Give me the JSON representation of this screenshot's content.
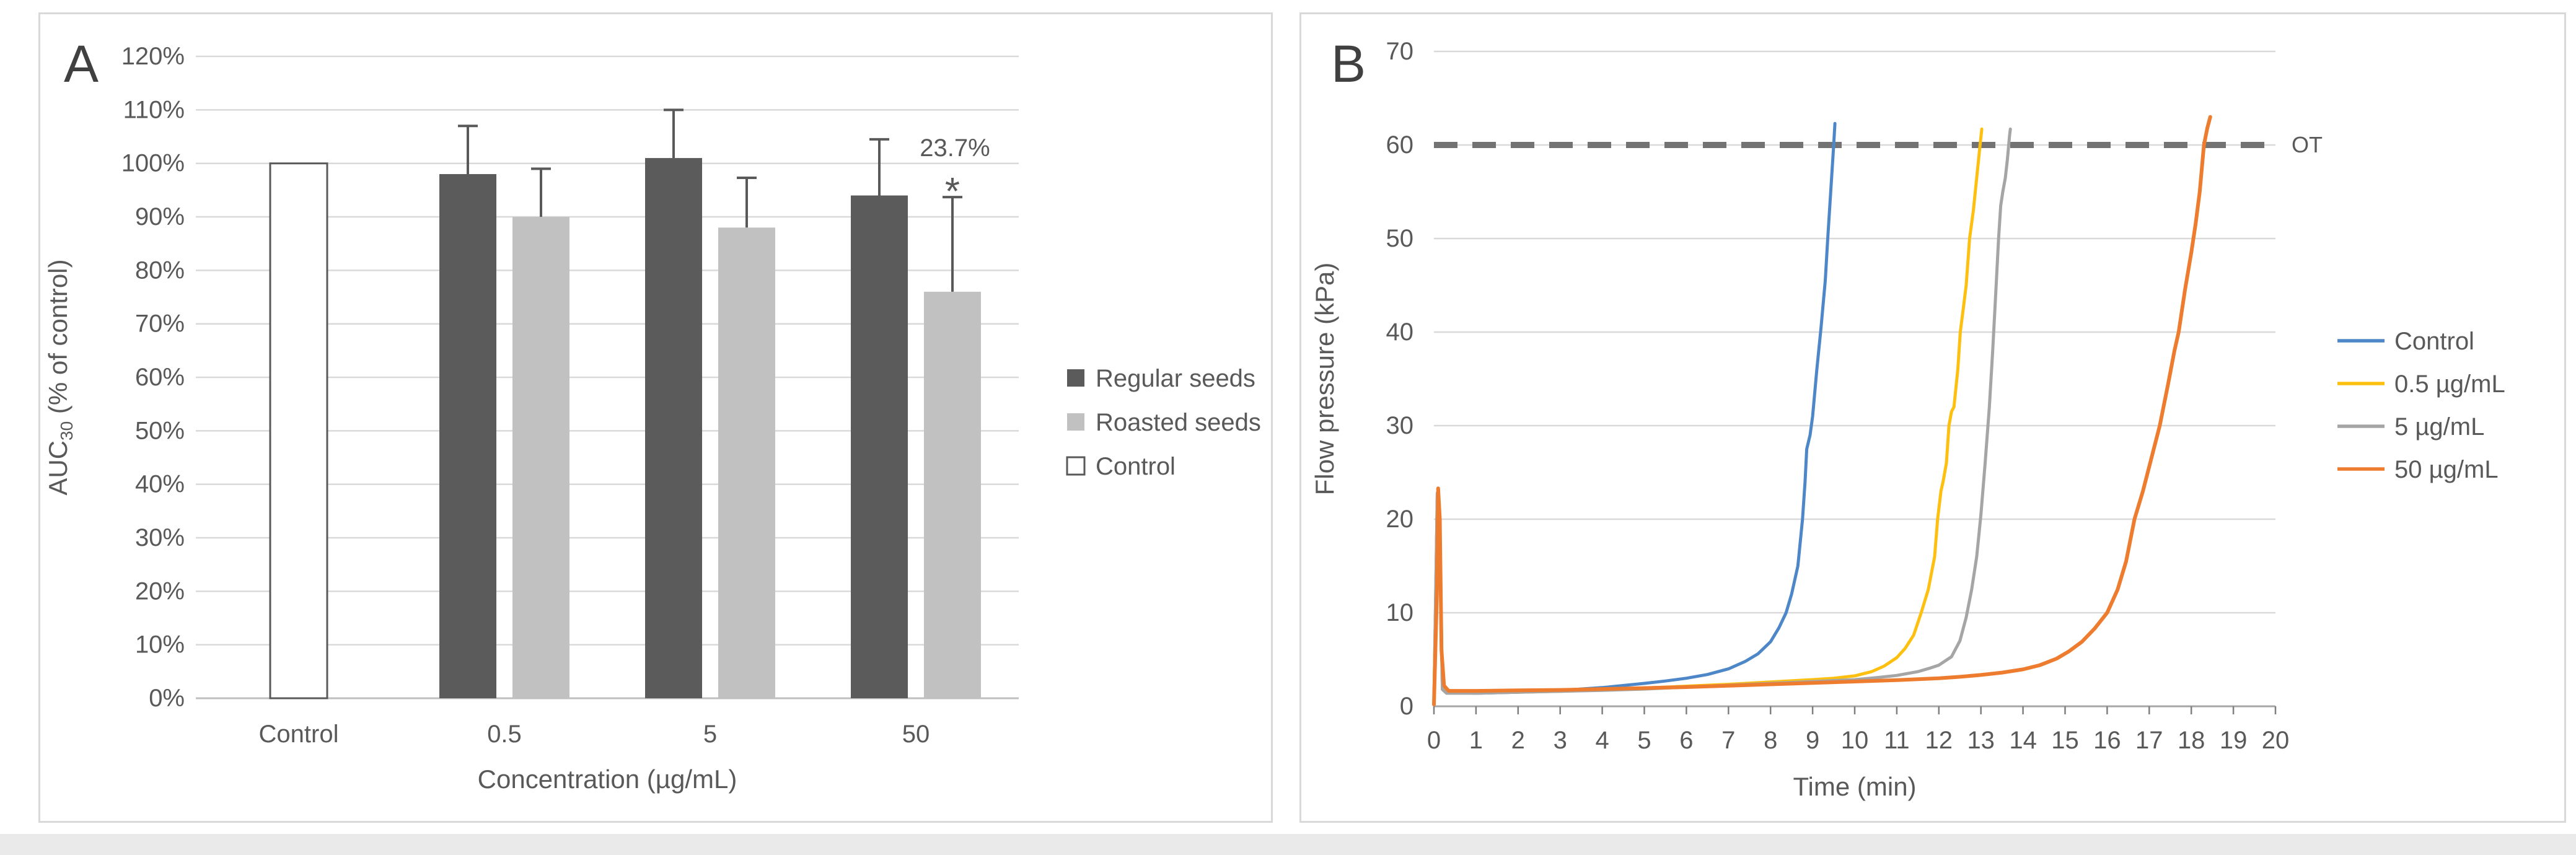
{
  "panel_a": {
    "label": "A"
  },
  "panel_b": {
    "label": "B"
  },
  "chart_data": [
    {
      "id": "A",
      "type": "bar",
      "title": "",
      "xlabel": "Concentration (µg/mL)",
      "ylabel": "AUC30 (% of control)",
      "ylabel_rich": {
        "pre": "AUC",
        "sub": "30",
        "post": " (% of control)"
      },
      "categories": [
        "Control",
        "0.5",
        "5",
        "50"
      ],
      "ylim": [
        0,
        120
      ],
      "ytick_step": 10,
      "yticks": [
        "0%",
        "10%",
        "20%",
        "30%",
        "40%",
        "50%",
        "60%",
        "70%",
        "80%",
        "90%",
        "100%",
        "110%",
        "120%"
      ],
      "grid": true,
      "legend_position": "right",
      "series": [
        {
          "name": "Regular seeds",
          "color": "#5b5b5b",
          "style": "filled",
          "values": [
            null,
            98,
            101,
            94
          ],
          "errors_plus": [
            null,
            9,
            9,
            10.5
          ]
        },
        {
          "name": "Roasted seeds",
          "color": "#c1c1c1",
          "style": "filled",
          "values": [
            null,
            90,
            88,
            76
          ],
          "errors_plus": [
            null,
            9,
            9.3,
            17.7
          ]
        },
        {
          "name": "Control",
          "color": "#ffffff",
          "outline": "#595959",
          "style": "outlined",
          "values": [
            100,
            null,
            null,
            null
          ],
          "errors_plus": [
            null,
            null,
            null,
            null
          ]
        }
      ],
      "annotations": [
        {
          "text": "23.7%",
          "category": "50",
          "series": "Roasted seeds",
          "role": "value-label"
        },
        {
          "text": "*",
          "category": "50",
          "series": "Roasted seeds",
          "role": "significance-star"
        }
      ]
    },
    {
      "id": "B",
      "type": "line",
      "title": "",
      "xlabel": "Time (min)",
      "ylabel": "Flow pressure (kPa)",
      "xlim": [
        0,
        20
      ],
      "ylim": [
        0,
        70
      ],
      "xtick_step": 1,
      "ytick_step": 10,
      "xticks": [
        "0",
        "1",
        "2",
        "3",
        "4",
        "5",
        "6",
        "7",
        "8",
        "9",
        "10",
        "11",
        "12",
        "13",
        "14",
        "15",
        "16",
        "17",
        "18",
        "19",
        "20"
      ],
      "yticks": [
        "0",
        "10",
        "20",
        "30",
        "40",
        "50",
        "60",
        "70"
      ],
      "grid": true,
      "legend_position": "right",
      "threshold": {
        "value": 60,
        "label": "OT",
        "color": "#737373",
        "style": "dashed"
      },
      "series": [
        {
          "name": "Control",
          "color": "#4e87c7",
          "width": 5,
          "points": [
            [
              0,
              0.3
            ],
            [
              0.08,
              22.2
            ],
            [
              0.14,
              18
            ],
            [
              0.2,
              2.2
            ],
            [
              0.3,
              1.5
            ],
            [
              1,
              1.4
            ],
            [
              2,
              1.5
            ],
            [
              3,
              1.7
            ],
            [
              4,
              2.0
            ],
            [
              5,
              2.45
            ],
            [
              5.5,
              2.7
            ],
            [
              6,
              3.0
            ],
            [
              6.5,
              3.4
            ],
            [
              7,
              4.0
            ],
            [
              7.4,
              4.8
            ],
            [
              7.7,
              5.6
            ],
            [
              8.0,
              6.9
            ],
            [
              8.2,
              8.4
            ],
            [
              8.37,
              10
            ],
            [
              8.5,
              12
            ],
            [
              8.65,
              15
            ],
            [
              8.76,
              20
            ],
            [
              8.82,
              24
            ],
            [
              8.86,
              27.5
            ],
            [
              8.94,
              29
            ],
            [
              9.0,
              31
            ],
            [
              9.1,
              36
            ],
            [
              9.2,
              40.5
            ],
            [
              9.3,
              45.5
            ],
            [
              9.36,
              50
            ],
            [
              9.43,
              55
            ],
            [
              9.5,
              60
            ],
            [
              9.53,
              62.3
            ]
          ]
        },
        {
          "name": "0.5 µg/mL",
          "color": "#fdc011",
          "width": 5,
          "points": [
            [
              0,
              0.3
            ],
            [
              0.08,
              22.5
            ],
            [
              0.14,
              17
            ],
            [
              0.2,
              1.9
            ],
            [
              0.3,
              1.5
            ],
            [
              1,
              1.45
            ],
            [
              2,
              1.5
            ],
            [
              3,
              1.6
            ],
            [
              4,
              1.75
            ],
            [
              5,
              1.95
            ],
            [
              6,
              2.15
            ],
            [
              7,
              2.35
            ],
            [
              8,
              2.6
            ],
            [
              9,
              2.85
            ],
            [
              9.5,
              3.0
            ],
            [
              10,
              3.25
            ],
            [
              10.4,
              3.7
            ],
            [
              10.7,
              4.3
            ],
            [
              11.0,
              5.2
            ],
            [
              11.2,
              6.2
            ],
            [
              11.4,
              7.6
            ],
            [
              11.58,
              10
            ],
            [
              11.75,
              12.5
            ],
            [
              11.9,
              16
            ],
            [
              11.97,
              20
            ],
            [
              12.05,
              23
            ],
            [
              12.1,
              24
            ],
            [
              12.18,
              26
            ],
            [
              12.24,
              30
            ],
            [
              12.3,
              31.5
            ],
            [
              12.36,
              32
            ],
            [
              12.45,
              36
            ],
            [
              12.51,
              40
            ],
            [
              12.58,
              42.5
            ],
            [
              12.65,
              45
            ],
            [
              12.73,
              50
            ],
            [
              12.82,
              53
            ],
            [
              12.9,
              56.5
            ],
            [
              12.98,
              60
            ],
            [
              13.02,
              61.7
            ]
          ]
        },
        {
          "name": "5 µg/mL",
          "color": "#a5a5a5",
          "width": 5,
          "points": [
            [
              0,
              0.3
            ],
            [
              0.08,
              22.8
            ],
            [
              0.14,
              17
            ],
            [
              0.2,
              1.8
            ],
            [
              0.3,
              1.4
            ],
            [
              1,
              1.4
            ],
            [
              2,
              1.5
            ],
            [
              3,
              1.6
            ],
            [
              4,
              1.7
            ],
            [
              5,
              1.85
            ],
            [
              6,
              2.05
            ],
            [
              7,
              2.25
            ],
            [
              8,
              2.45
            ],
            [
              9,
              2.65
            ],
            [
              10,
              2.85
            ],
            [
              10.5,
              3.05
            ],
            [
              11,
              3.3
            ],
            [
              11.5,
              3.7
            ],
            [
              11.8,
              4.1
            ],
            [
              12.0,
              4.4
            ],
            [
              12.3,
              5.3
            ],
            [
              12.5,
              7
            ],
            [
              12.65,
              9.5
            ],
            [
              12.78,
              12.5
            ],
            [
              12.9,
              16
            ],
            [
              13.0,
              20.5
            ],
            [
              13.1,
              26
            ],
            [
              13.2,
              32
            ],
            [
              13.28,
              38
            ],
            [
              13.35,
              44
            ],
            [
              13.42,
              50
            ],
            [
              13.47,
              53.5
            ],
            [
              13.52,
              55
            ],
            [
              13.58,
              56.5
            ],
            [
              13.63,
              58.5
            ],
            [
              13.68,
              61
            ],
            [
              13.7,
              61.7
            ]
          ]
        },
        {
          "name": "50 µg/mL",
          "color": "#ed7c2f",
          "width": 6,
          "points": [
            [
              0,
              0.2
            ],
            [
              0.07,
              12
            ],
            [
              0.1,
              23.3
            ],
            [
              0.14,
              20
            ],
            [
              0.18,
              6
            ],
            [
              0.24,
              2.2
            ],
            [
              0.35,
              1.65
            ],
            [
              1,
              1.65
            ],
            [
              2,
              1.7
            ],
            [
              3,
              1.75
            ],
            [
              4,
              1.85
            ],
            [
              5,
              1.95
            ],
            [
              6,
              2.05
            ],
            [
              7,
              2.2
            ],
            [
              8,
              2.35
            ],
            [
              9,
              2.5
            ],
            [
              10,
              2.65
            ],
            [
              11,
              2.8
            ],
            [
              12,
              3.0
            ],
            [
              12.5,
              3.15
            ],
            [
              13,
              3.35
            ],
            [
              13.5,
              3.6
            ],
            [
              14,
              3.95
            ],
            [
              14.4,
              4.4
            ],
            [
              14.8,
              5.1
            ],
            [
              15.1,
              5.9
            ],
            [
              15.4,
              6.9
            ],
            [
              15.7,
              8.3
            ],
            [
              16.0,
              10
            ],
            [
              16.25,
              12.5
            ],
            [
              16.45,
              15.5
            ],
            [
              16.65,
              20
            ],
            [
              16.85,
              23
            ],
            [
              17.05,
              26.5
            ],
            [
              17.25,
              30
            ],
            [
              17.45,
              34.5
            ],
            [
              17.6,
              38
            ],
            [
              17.7,
              40
            ],
            [
              17.85,
              44.5
            ],
            [
              18.0,
              48.5
            ],
            [
              18.1,
              51.5
            ],
            [
              18.2,
              55
            ],
            [
              18.3,
              60
            ],
            [
              18.38,
              61.8
            ],
            [
              18.45,
              63
            ]
          ]
        }
      ]
    }
  ]
}
